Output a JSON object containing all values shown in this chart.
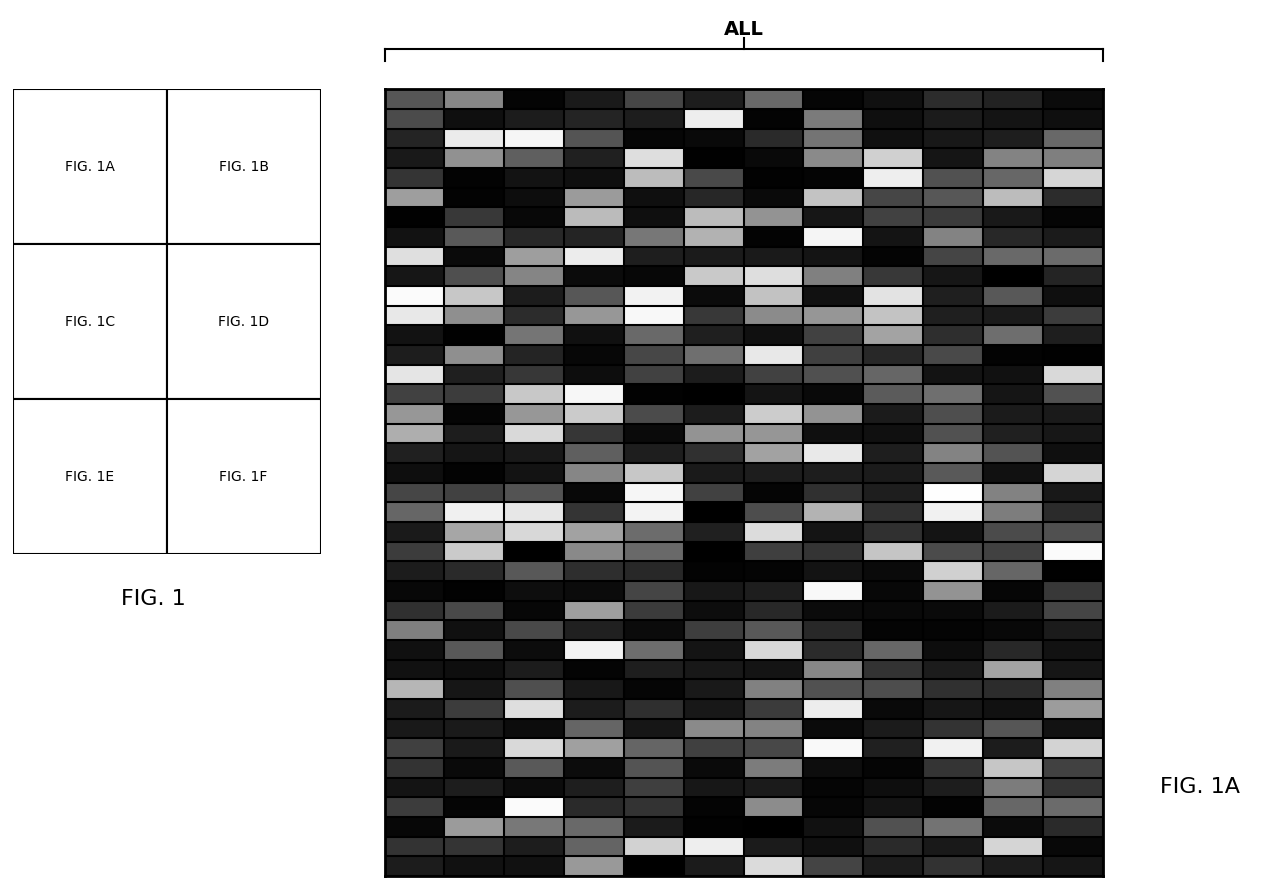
{
  "title": "ALL",
  "fig1a_label": "FIG. 1A",
  "fig1_label": "FIG. 1",
  "panel_labels": [
    [
      "FIG. 1A",
      "FIG. 1B"
    ],
    [
      "FIG. 1C",
      "FIG. 1D"
    ],
    [
      "FIG. 1E",
      "FIG. 1F"
    ]
  ],
  "heatmap_cols": 12,
  "heatmap_rows": 40,
  "background_color": "#ffffff",
  "seed": 42
}
